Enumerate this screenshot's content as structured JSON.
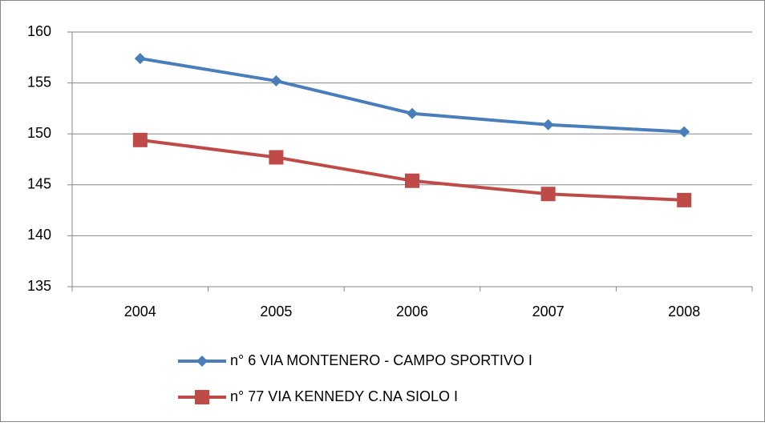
{
  "chart_data": {
    "type": "line",
    "categories": [
      "2004",
      "2005",
      "2006",
      "2007",
      "2008"
    ],
    "series": [
      {
        "name": "n° 6 VIA MONTENERO - CAMPO SPORTIVO I",
        "color": "#4a7ebb",
        "marker": "diamond",
        "values": [
          157.4,
          155.2,
          152.0,
          150.9,
          150.2
        ]
      },
      {
        "name": "n° 77 VIA KENNEDY C.NA SIOLO I",
        "color": "#be4b48",
        "marker": "square",
        "values": [
          149.4,
          147.7,
          145.4,
          144.1,
          143.5
        ]
      }
    ],
    "ylim": [
      135,
      160
    ],
    "yticks": [
      135,
      140,
      145,
      150,
      155,
      160
    ],
    "grid": true,
    "legend": "bottom"
  }
}
